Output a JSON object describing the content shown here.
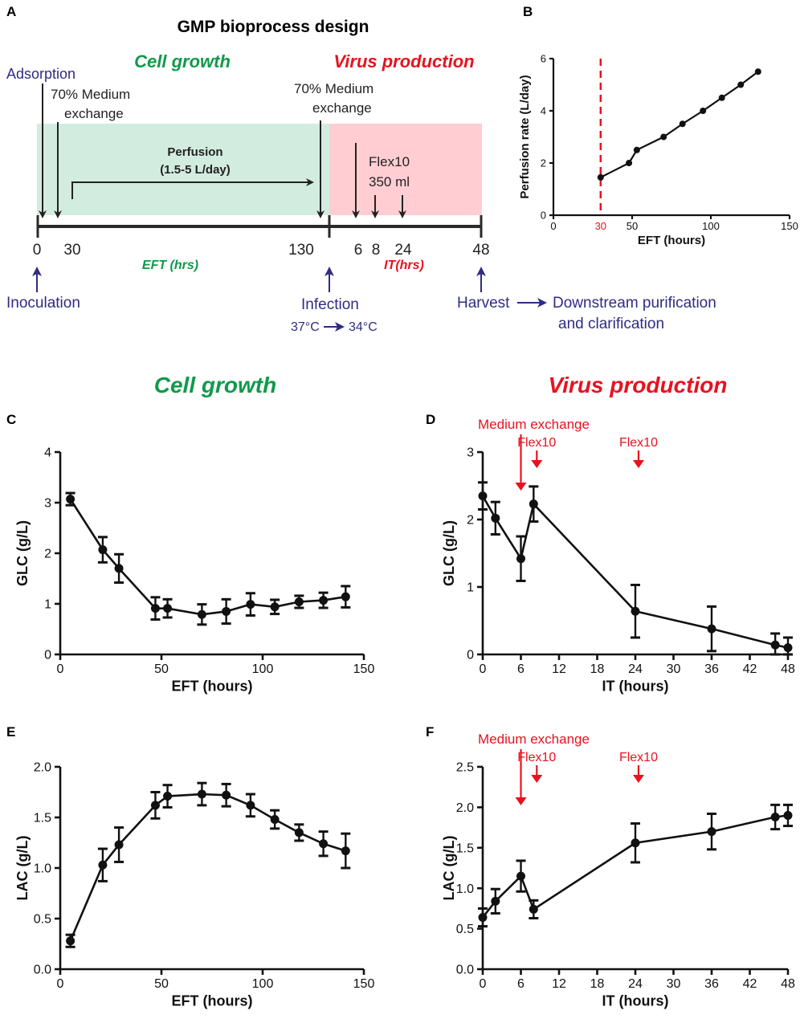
{
  "figure": {
    "panel_labels": {
      "A": "A",
      "B": "B",
      "C": "C",
      "D": "D",
      "E": "E",
      "F": "F"
    },
    "section_titles": {
      "cell_growth": "Cell growth",
      "virus_production": "Virus production"
    }
  },
  "schematic": {
    "title": "GMP bioprocess design",
    "phase_growth": "Cell growth",
    "phase_virus": "Virus production",
    "adsorption": "Adsorption",
    "medium_exchange_1": [
      "70% Medium",
      "exchange"
    ],
    "medium_exchange_2": [
      "70% Medium",
      "exchange"
    ],
    "perfusion": [
      "Perfusion",
      "(1.5-5 L/day)"
    ],
    "flex10": [
      "Flex10",
      "350 ml"
    ],
    "ticks_eft": [
      "0",
      "30",
      "130"
    ],
    "ticks_it": [
      "6",
      "8",
      "24",
      "48"
    ],
    "eft_label": "EFT (hrs)",
    "it_label": "IT(hrs)",
    "inoculation": "Inoculation",
    "infection": "Infection",
    "temp_from": "37°C",
    "temp_to": "34°C",
    "harvest": "Harvest",
    "downstream": [
      "Downstream purification",
      "and clarification"
    ],
    "colors": {
      "growth_bg": "#d3ece0",
      "virus_bg": "#ffcdd2",
      "growth_text": "#0f9a4a",
      "virus_text": "#e8121f",
      "annotation_blue": "#2f2c82"
    }
  },
  "chart_data": [
    {
      "id": "B",
      "type": "line",
      "xlabel": "EFT (hours)",
      "ylabel": "Perfusion rate (L/day)",
      "xlim": [
        0,
        150
      ],
      "ylim": [
        0,
        6
      ],
      "xticks": [
        0,
        50,
        100,
        150
      ],
      "yticks": [
        0,
        2,
        4,
        6
      ],
      "marker_line": {
        "x": 30,
        "label": "30",
        "color": "#e8121f"
      },
      "x": [
        30,
        48,
        53,
        70,
        82,
        95,
        107,
        119,
        130
      ],
      "y": [
        1.45,
        2.0,
        2.5,
        3.0,
        3.5,
        4.0,
        4.5,
        5.0,
        5.5
      ]
    },
    {
      "id": "C",
      "type": "line",
      "xlabel": "EFT (hours)",
      "ylabel": "GLC (g/L)",
      "xlim": [
        0,
        150
      ],
      "ylim": [
        0,
        4
      ],
      "xticks": [
        0,
        50,
        100,
        150
      ],
      "yticks": [
        0,
        1,
        2,
        3,
        4
      ],
      "x": [
        5,
        21,
        29,
        47,
        53,
        70,
        82,
        94,
        106,
        118,
        130,
        141
      ],
      "y": [
        3.07,
        2.07,
        1.7,
        0.91,
        0.91,
        0.79,
        0.85,
        0.99,
        0.94,
        1.04,
        1.07,
        1.14
      ],
      "err": [
        0.12,
        0.25,
        0.28,
        0.22,
        0.18,
        0.2,
        0.24,
        0.22,
        0.14,
        0.12,
        0.15,
        0.21
      ]
    },
    {
      "id": "D",
      "type": "line",
      "xlabel": "IT (hours)",
      "ylabel": "GLC (g/L)",
      "xlim": [
        0,
        48
      ],
      "ylim": [
        0,
        3
      ],
      "xticks": [
        0,
        6,
        12,
        18,
        24,
        30,
        36,
        42,
        48
      ],
      "yticks": [
        0,
        1,
        2,
        3
      ],
      "x": [
        0,
        2,
        6,
        8,
        24,
        36,
        46,
        48
      ],
      "y": [
        2.35,
        2.02,
        1.42,
        2.23,
        0.64,
        0.38,
        0.14,
        0.1
      ],
      "err": [
        0.2,
        0.24,
        0.33,
        0.26,
        0.39,
        0.33,
        0.17,
        0.15
      ],
      "annotations": [
        {
          "x": 6,
          "label": "Medium exchange",
          "big": true
        },
        {
          "x": 8.5,
          "label": "Flex10",
          "big": false
        },
        {
          "x": 24.5,
          "label": "Flex10",
          "big": false
        }
      ]
    },
    {
      "id": "E",
      "type": "line",
      "xlabel": "EFT (hours)",
      "ylabel": "LAC (g/L)",
      "xlim": [
        0,
        150
      ],
      "ylim": [
        0,
        2.0
      ],
      "xticks": [
        0,
        50,
        100,
        150
      ],
      "yticks": [
        "0.0",
        "0.5",
        "1.0",
        "1.5",
        "2.0"
      ],
      "x": [
        5,
        21,
        29,
        47,
        53,
        70,
        82,
        94,
        106,
        118,
        130,
        141
      ],
      "y": [
        0.28,
        1.03,
        1.23,
        1.62,
        1.71,
        1.73,
        1.72,
        1.62,
        1.48,
        1.35,
        1.24,
        1.17
      ],
      "err": [
        0.06,
        0.16,
        0.17,
        0.13,
        0.11,
        0.11,
        0.11,
        0.11,
        0.09,
        0.08,
        0.12,
        0.17
      ]
    },
    {
      "id": "F",
      "type": "line",
      "xlabel": "IT (hours)",
      "ylabel": "LAC (g/L)",
      "xlim": [
        0,
        48
      ],
      "ylim": [
        0,
        2.5
      ],
      "xticks": [
        0,
        6,
        12,
        18,
        24,
        30,
        36,
        42,
        48
      ],
      "yticks": [
        "0.0",
        "0.5",
        "1.0",
        "1.5",
        "2.0",
        "2.5"
      ],
      "x": [
        0,
        2,
        6,
        8,
        24,
        36,
        46,
        48
      ],
      "y": [
        0.64,
        0.84,
        1.15,
        0.74,
        1.56,
        1.7,
        1.88,
        1.9
      ],
      "err": [
        0.11,
        0.15,
        0.19,
        0.11,
        0.24,
        0.22,
        0.15,
        0.13
      ],
      "annotations": [
        {
          "x": 6,
          "label": "Medium exchange",
          "big": true
        },
        {
          "x": 8.5,
          "label": "Flex10",
          "big": false
        },
        {
          "x": 24.5,
          "label": "Flex10",
          "big": false
        }
      ]
    }
  ]
}
